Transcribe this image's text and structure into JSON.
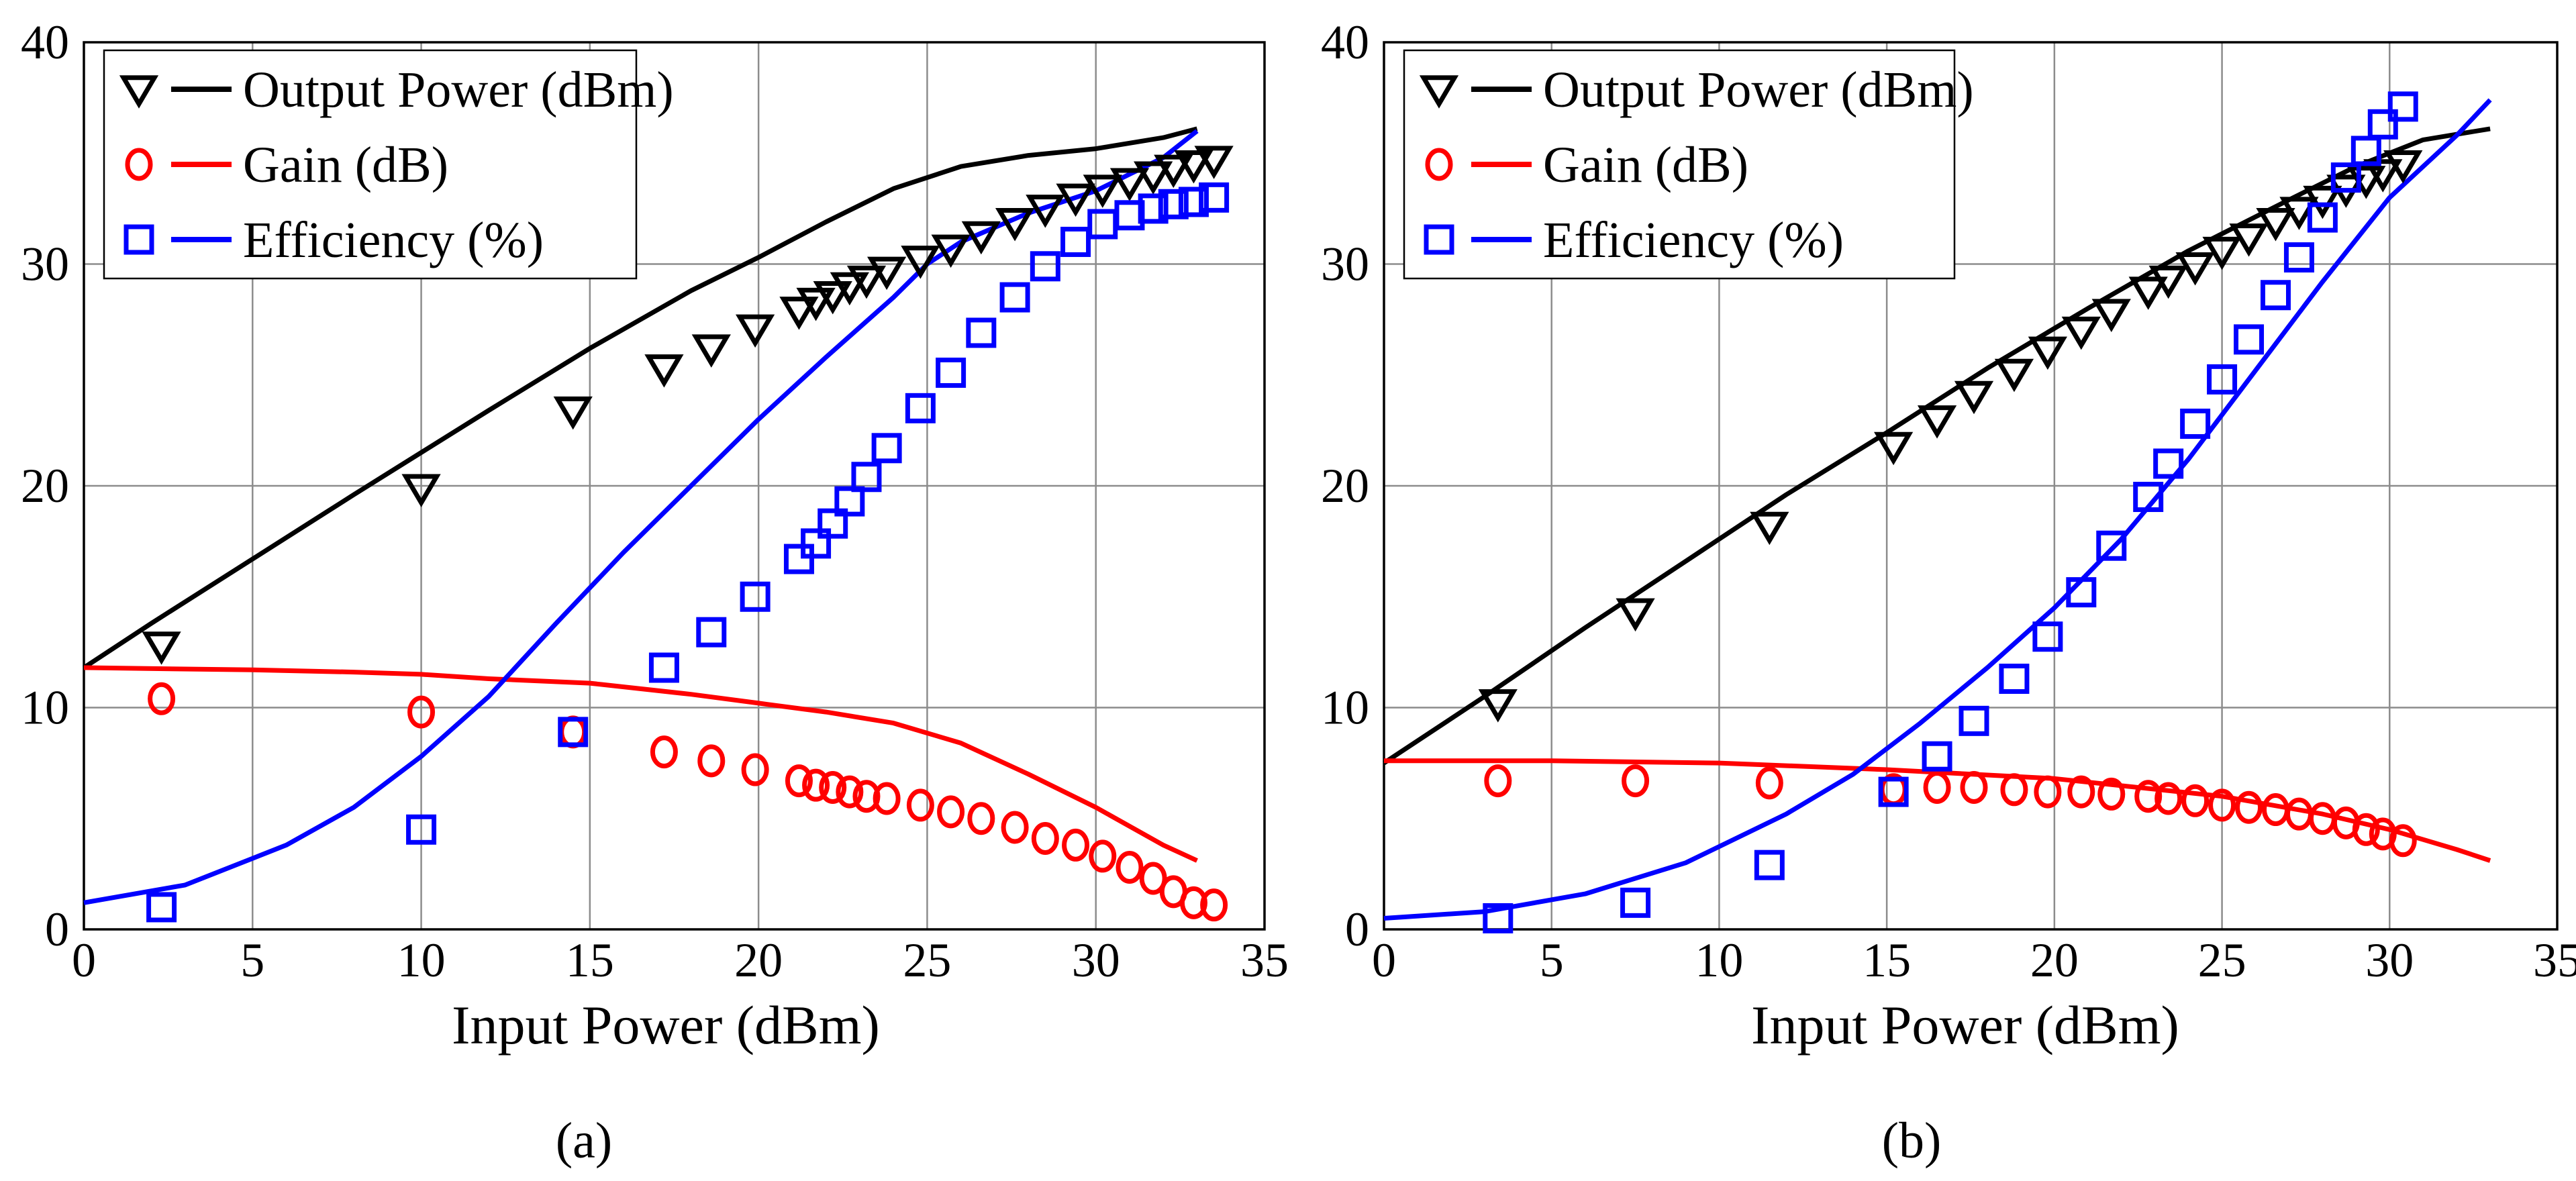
{
  "chart_data": [
    {
      "type": "line",
      "caption": "(a)",
      "xlabel": "Input Power (dBm)",
      "ylabel": "",
      "xlim": [
        0,
        35
      ],
      "ylim": [
        0,
        40
      ],
      "xticks": [
        0,
        5,
        10,
        15,
        20,
        25,
        30,
        35
      ],
      "yticks": [
        0,
        10,
        20,
        30,
        40
      ],
      "grid": true,
      "legend_position": "top-left",
      "legend": [
        {
          "label": "Output Power (dBm)",
          "marker": "triangle-down",
          "color": "#000000"
        },
        {
          "label": "Gain (dB)",
          "marker": "circle",
          "color": "#ff0000"
        },
        {
          "label": "Efficiency (%)",
          "marker": "square",
          "color": "#0000ff"
        }
      ],
      "series": [
        {
          "name": "Output Power (dBm) simulated",
          "kind": "line",
          "color": "#000000",
          "x": [
            0,
            2,
            5,
            8,
            10,
            12,
            15,
            18,
            20,
            22,
            24,
            26,
            28,
            30,
            32,
            33
          ],
          "y": [
            11.8,
            13.8,
            16.7,
            19.6,
            21.5,
            23.4,
            26.2,
            28.8,
            30.3,
            31.9,
            33.4,
            34.4,
            34.9,
            35.2,
            35.7,
            36.1
          ]
        },
        {
          "name": "Output Power (dBm) measured",
          "kind": "marker",
          "marker": "triangle-down",
          "color": "#000000",
          "x": [
            2.3,
            10,
            14.5,
            17.2,
            18.6,
            19.9,
            21.2,
            21.7,
            22.2,
            22.7,
            23.2,
            23.8,
            24.8,
            25.7,
            26.6,
            27.6,
            28.5,
            29.4,
            30.2,
            31.0,
            31.7,
            32.3,
            32.9,
            33.5
          ],
          "y": [
            12.8,
            19.9,
            23.4,
            25.3,
            26.2,
            27.1,
            27.9,
            28.3,
            28.6,
            29.0,
            29.3,
            29.7,
            30.2,
            30.7,
            31.3,
            31.9,
            32.5,
            33.0,
            33.4,
            33.7,
            34.0,
            34.3,
            34.5,
            34.7
          ]
        },
        {
          "name": "Gain (dB) simulated",
          "kind": "line",
          "color": "#ff0000",
          "x": [
            0,
            5,
            8,
            10,
            12,
            15,
            18,
            20,
            22,
            24,
            26,
            28,
            30,
            32,
            33
          ],
          "y": [
            11.8,
            11.7,
            11.6,
            11.5,
            11.3,
            11.1,
            10.6,
            10.2,
            9.8,
            9.3,
            8.4,
            7.0,
            5.5,
            3.8,
            3.1
          ]
        },
        {
          "name": "Gain (dB) measured",
          "kind": "marker",
          "marker": "circle",
          "color": "#ff0000",
          "x": [
            2.3,
            10,
            14.5,
            17.2,
            18.6,
            19.9,
            21.2,
            21.7,
            22.2,
            22.7,
            23.2,
            23.8,
            24.8,
            25.7,
            26.6,
            27.6,
            28.5,
            29.4,
            30.2,
            31.0,
            31.7,
            32.3,
            32.9,
            33.5
          ],
          "y": [
            10.4,
            9.8,
            8.9,
            8.0,
            7.6,
            7.2,
            6.7,
            6.5,
            6.4,
            6.2,
            6.0,
            5.9,
            5.6,
            5.3,
            5.0,
            4.6,
            4.1,
            3.8,
            3.3,
            2.8,
            2.3,
            1.7,
            1.2,
            1.1
          ]
        },
        {
          "name": "Efficiency (%) simulated",
          "kind": "line",
          "color": "#0000ff",
          "x": [
            0,
            3,
            6,
            8,
            10,
            12,
            14,
            16,
            18,
            20,
            22,
            24,
            25,
            26,
            28,
            30,
            32,
            33
          ],
          "y": [
            1.2,
            2.0,
            3.8,
            5.5,
            7.8,
            10.5,
            13.8,
            17.0,
            20.0,
            23.0,
            25.8,
            28.5,
            30.0,
            31.0,
            32.3,
            33.3,
            34.8,
            36.0
          ]
        },
        {
          "name": "Efficiency (%) measured",
          "kind": "marker",
          "marker": "square",
          "color": "#0000ff",
          "x": [
            2.3,
            10,
            14.5,
            17.2,
            18.6,
            19.9,
            21.2,
            21.7,
            22.2,
            22.7,
            23.2,
            23.8,
            24.8,
            25.7,
            26.6,
            27.6,
            28.5,
            29.4,
            30.2,
            31.0,
            31.7,
            32.3,
            32.9,
            33.5
          ],
          "y": [
            1.0,
            4.5,
            8.9,
            11.8,
            13.4,
            15.0,
            16.7,
            17.4,
            18.3,
            19.3,
            20.4,
            21.7,
            23.5,
            25.1,
            26.9,
            28.5,
            29.9,
            31.0,
            31.8,
            32.2,
            32.5,
            32.7,
            32.8,
            33.0
          ]
        }
      ]
    },
    {
      "type": "line",
      "caption": "(b)",
      "xlabel": "Input Power (dBm)",
      "ylabel": "",
      "xlim": [
        0,
        35
      ],
      "ylim": [
        0,
        40
      ],
      "xticks": [
        0,
        5,
        10,
        15,
        20,
        25,
        30,
        35
      ],
      "yticks": [
        0,
        10,
        20,
        30,
        40
      ],
      "grid": true,
      "legend_position": "top-left",
      "legend": [
        {
          "label": "Output Power (dBm)",
          "marker": "triangle-down",
          "color": "#000000"
        },
        {
          "label": "Gain (dB)",
          "marker": "circle",
          "color": "#ff0000"
        },
        {
          "label": "Efficiency (%)",
          "marker": "square",
          "color": "#0000ff"
        }
      ],
      "series": [
        {
          "name": "Output Power (dBm) simulated",
          "kind": "line",
          "color": "#000000",
          "x": [
            0,
            3,
            6,
            9,
            12,
            15,
            18,
            21,
            24,
            27,
            29,
            31,
            33
          ],
          "y": [
            7.5,
            10.5,
            13.6,
            16.6,
            19.6,
            22.4,
            25.3,
            28.0,
            30.6,
            32.9,
            34.4,
            35.6,
            36.1
          ]
        },
        {
          "name": "Output Power (dBm) measured",
          "kind": "marker",
          "marker": "triangle-down",
          "color": "#000000",
          "x": [
            3.4,
            7.5,
            11.5,
            15.2,
            16.5,
            17.6,
            18.8,
            19.8,
            20.8,
            21.7,
            22.8,
            23.4,
            24.2,
            25.0,
            25.8,
            26.6,
            27.3,
            28.0,
            28.7,
            29.3,
            29.8,
            30.4
          ],
          "y": [
            10.2,
            14.3,
            18.2,
            21.8,
            23.0,
            24.1,
            25.1,
            26.1,
            27.0,
            27.8,
            28.8,
            29.3,
            29.9,
            30.6,
            31.2,
            31.9,
            32.4,
            32.9,
            33.4,
            33.8,
            34.1,
            34.5
          ]
        },
        {
          "name": "Gain (dB) simulated",
          "kind": "line",
          "color": "#ff0000",
          "x": [
            0,
            5,
            10,
            15,
            20,
            25,
            28,
            30,
            32,
            33
          ],
          "y": [
            7.6,
            7.6,
            7.5,
            7.2,
            6.8,
            6.0,
            5.2,
            4.5,
            3.6,
            3.1
          ]
        },
        {
          "name": "Gain (dB) measured",
          "kind": "marker",
          "marker": "circle",
          "color": "#ff0000",
          "x": [
            3.4,
            7.5,
            11.5,
            15.2,
            16.5,
            17.6,
            18.8,
            19.8,
            20.8,
            21.7,
            22.8,
            23.4,
            24.2,
            25.0,
            25.8,
            26.6,
            27.3,
            28.0,
            28.7,
            29.3,
            29.8,
            30.4
          ],
          "y": [
            6.7,
            6.7,
            6.6,
            6.3,
            6.4,
            6.4,
            6.3,
            6.2,
            6.2,
            6.1,
            6.0,
            5.9,
            5.8,
            5.6,
            5.5,
            5.4,
            5.2,
            5.0,
            4.8,
            4.5,
            4.3,
            4.0
          ]
        },
        {
          "name": "Efficiency (%) simulated",
          "kind": "line",
          "color": "#0000ff",
          "x": [
            0,
            3,
            6,
            9,
            12,
            14,
            16,
            18,
            20,
            22,
            24,
            26,
            28,
            30,
            32,
            33
          ],
          "y": [
            0.5,
            0.8,
            1.6,
            3.0,
            5.2,
            7.0,
            9.3,
            11.8,
            14.5,
            17.6,
            21.2,
            25.2,
            29.2,
            33.0,
            35.8,
            37.4
          ]
        },
        {
          "name": "Efficiency (%) measured",
          "kind": "marker",
          "marker": "square",
          "color": "#0000ff",
          "x": [
            3.4,
            7.5,
            11.5,
            15.2,
            16.5,
            17.6,
            18.8,
            19.8,
            20.8,
            21.7,
            22.8,
            23.4,
            24.2,
            25.0,
            25.8,
            26.6,
            27.3,
            28.0,
            28.7,
            29.3,
            29.8,
            30.4
          ],
          "y": [
            0.5,
            1.2,
            2.9,
            6.2,
            7.8,
            9.4,
            11.3,
            13.2,
            15.2,
            17.3,
            19.5,
            21.0,
            22.8,
            24.8,
            26.6,
            28.6,
            30.3,
            32.1,
            33.9,
            35.1,
            36.3,
            37.1
          ]
        }
      ]
    }
  ]
}
